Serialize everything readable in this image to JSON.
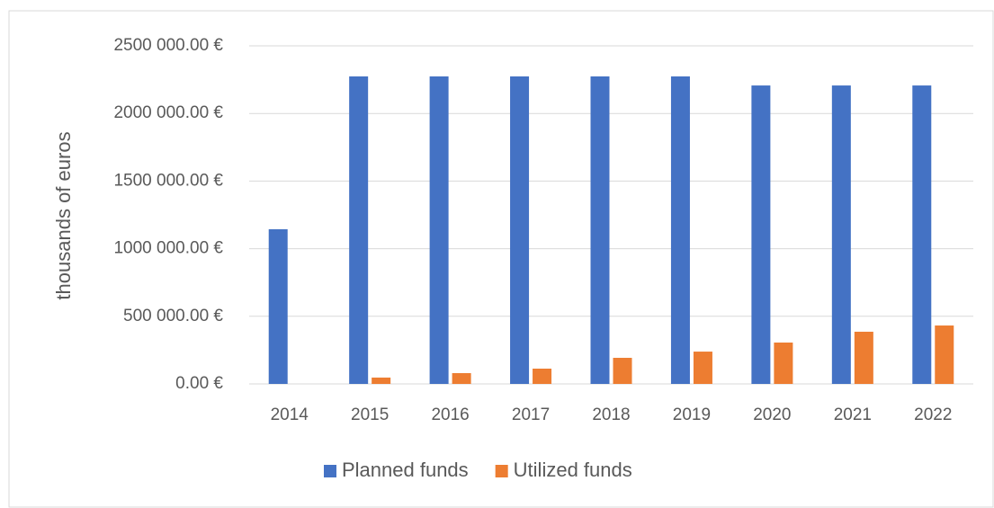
{
  "chart_data": {
    "type": "bar",
    "y_label": "thousands of euros",
    "categories": [
      "2014",
      "2015",
      "2016",
      "2017",
      "2018",
      "2019",
      "2020",
      "2021",
      "2022"
    ],
    "series": [
      {
        "name": "Planned funds",
        "color": "#4472c4",
        "values": [
          1144000,
          2274000,
          2274000,
          2274000,
          2274000,
          2274000,
          2207000,
          2207000,
          2207000
        ]
      },
      {
        "name": "Utilized funds",
        "color": "#ed7d31",
        "values": [
          0,
          47000,
          80000,
          113000,
          193000,
          239000,
          306000,
          386000,
          432000
        ]
      }
    ],
    "ylim": [
      0,
      2500000
    ],
    "yticks": [
      {
        "value": 0,
        "label": "0.00 €"
      },
      {
        "value": 500000,
        "label": "500 000.00 €"
      },
      {
        "value": 1000000,
        "label": "1000 000.00 €"
      },
      {
        "value": 1500000,
        "label": "1500 000.00 €"
      },
      {
        "value": 2000000,
        "label": "2000 000.00 €"
      },
      {
        "value": 2500000,
        "label": "2500 000.00 €"
      }
    ],
    "grid": true,
    "legend": "bottom"
  }
}
